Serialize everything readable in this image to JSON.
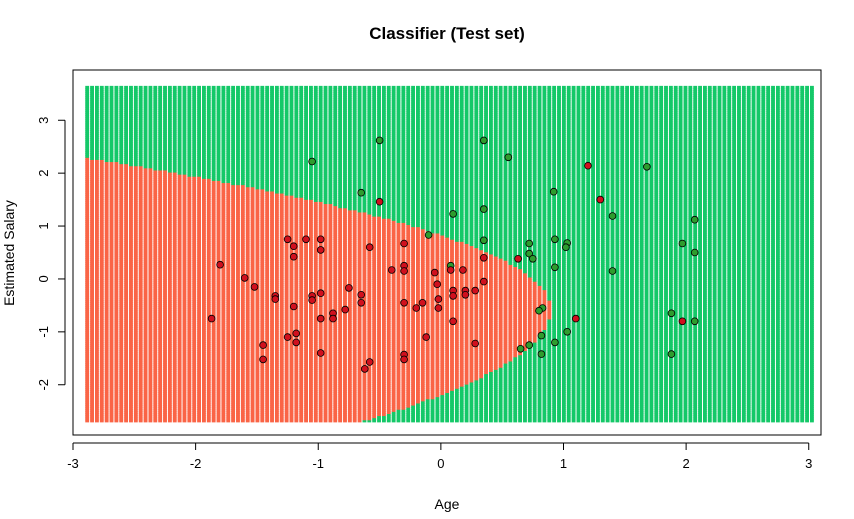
{
  "chart_data": {
    "type": "scatter",
    "title": "Classifier (Test set)",
    "xlabel": "Age",
    "ylabel": "Estimated Salary",
    "xlim": [
      -3.0,
      3.1
    ],
    "ylim": [
      -2.95,
      3.95
    ],
    "grid_range": {
      "x": [
        -2.9,
        3.05
      ],
      "y": [
        -2.7,
        3.65
      ]
    },
    "x_ticks": [
      -3,
      -2,
      -1,
      0,
      1,
      2,
      3
    ],
    "y_ticks": [
      -2,
      -1,
      0,
      1,
      2,
      3
    ],
    "colors": {
      "region_0": "#FA6446",
      "region_1": "#14C868",
      "point_0": "#D0101E",
      "point_1": "#2E9C2E",
      "point_edge": "#000000"
    },
    "decision_boundary": {
      "description_shape": "parabola-like",
      "vertex": [
        0.9,
        -0.55
      ],
      "top": [
        -2.9,
        2.3
      ],
      "bottom": [
        -0.65,
        -2.7
      ]
    },
    "points": [
      [
        -1.05,
        2.22,
        1
      ],
      [
        -0.5,
        2.62,
        1
      ],
      [
        0.35,
        2.62,
        1
      ],
      [
        0.55,
        2.3,
        1
      ],
      [
        1.2,
        2.14,
        0
      ],
      [
        1.68,
        2.12,
        1
      ],
      [
        -0.65,
        1.63,
        1
      ],
      [
        -0.5,
        1.46,
        0
      ],
      [
        0.92,
        1.65,
        1
      ],
      [
        1.3,
        1.5,
        0
      ],
      [
        0.1,
        1.23,
        1
      ],
      [
        0.35,
        1.32,
        1
      ],
      [
        1.4,
        1.19,
        1
      ],
      [
        2.07,
        1.12,
        1
      ],
      [
        -0.1,
        0.83,
        1
      ],
      [
        -1.1,
        0.75,
        0
      ],
      [
        -1.25,
        0.75,
        0
      ],
      [
        -1.2,
        0.62,
        0
      ],
      [
        -1.2,
        0.42,
        0
      ],
      [
        -0.98,
        0.55,
        0
      ],
      [
        -0.58,
        0.6,
        0
      ],
      [
        -0.3,
        0.67,
        0
      ],
      [
        0.35,
        0.73,
        1
      ],
      [
        0.72,
        0.67,
        1
      ],
      [
        0.93,
        0.75,
        1
      ],
      [
        1.03,
        0.68,
        1
      ],
      [
        1.02,
        0.6,
        1
      ],
      [
        1.97,
        0.67,
        1
      ],
      [
        2.07,
        0.5,
        1
      ],
      [
        0.72,
        0.48,
        1
      ],
      [
        0.63,
        0.38,
        0
      ],
      [
        0.75,
        0.38,
        1
      ],
      [
        0.35,
        0.4,
        0
      ],
      [
        -1.8,
        0.27,
        0
      ],
      [
        -1.6,
        0.02,
        0
      ],
      [
        -1.52,
        -0.15,
        0
      ],
      [
        -1.35,
        -0.32,
        0
      ],
      [
        -1.35,
        -0.38,
        0
      ],
      [
        -1.2,
        -0.52,
        0
      ],
      [
        -1.05,
        -0.32,
        0
      ],
      [
        -1.05,
        -0.4,
        0
      ],
      [
        -0.98,
        -0.27,
        0
      ],
      [
        -0.88,
        -0.65,
        0
      ],
      [
        -0.88,
        -0.75,
        0
      ],
      [
        -0.75,
        -0.17,
        0
      ],
      [
        -0.78,
        -0.58,
        0
      ],
      [
        -0.65,
        -0.3,
        0
      ],
      [
        -0.65,
        -0.45,
        0
      ],
      [
        -0.62,
        -1.7,
        0
      ],
      [
        -0.58,
        -1.57,
        0
      ],
      [
        -0.4,
        0.17,
        0
      ],
      [
        -0.3,
        0.25,
        0
      ],
      [
        -0.3,
        0.15,
        0
      ],
      [
        -0.3,
        -0.45,
        0
      ],
      [
        -0.2,
        -0.55,
        0
      ],
      [
        -0.15,
        -0.45,
        0
      ],
      [
        -0.12,
        -1.1,
        0
      ],
      [
        -0.05,
        0.12,
        0
      ],
      [
        -0.03,
        -0.1,
        0
      ],
      [
        -0.02,
        -0.38,
        0
      ],
      [
        -0.02,
        -0.55,
        0
      ],
      [
        0.08,
        0.25,
        1
      ],
      [
        0.08,
        0.17,
        0
      ],
      [
        0.1,
        -0.22,
        0
      ],
      [
        0.1,
        -0.32,
        0
      ],
      [
        0.1,
        -0.8,
        0
      ],
      [
        0.18,
        0.17,
        0
      ],
      [
        0.2,
        -0.22,
        0
      ],
      [
        0.2,
        -0.3,
        0
      ],
      [
        0.28,
        -0.22,
        0
      ],
      [
        0.35,
        -0.05,
        0
      ],
      [
        0.28,
        -1.22,
        0
      ],
      [
        0.83,
        -0.55,
        1
      ],
      [
        0.8,
        -0.6,
        1
      ],
      [
        0.82,
        -1.07,
        1
      ],
      [
        0.72,
        -1.25,
        1
      ],
      [
        0.65,
        -1.32,
        1
      ],
      [
        0.82,
        -1.42,
        1
      ],
      [
        0.93,
        -1.2,
        1
      ],
      [
        0.93,
        0.22,
        1
      ],
      [
        1.1,
        -0.75,
        0
      ],
      [
        1.03,
        -1.0,
        1
      ],
      [
        1.4,
        0.15,
        1
      ],
      [
        1.88,
        -0.65,
        1
      ],
      [
        1.88,
        -1.42,
        1
      ],
      [
        1.97,
        -0.8,
        0
      ],
      [
        2.07,
        -0.8,
        1
      ],
      [
        -1.87,
        -0.75,
        0
      ],
      [
        -1.45,
        -1.25,
        0
      ],
      [
        -1.45,
        -1.52,
        0
      ],
      [
        -1.25,
        -1.1,
        0
      ],
      [
        -1.18,
        -1.03,
        0
      ],
      [
        -1.18,
        -1.2,
        0
      ],
      [
        -0.98,
        -0.75,
        0
      ],
      [
        -0.3,
        -1.43,
        0
      ],
      [
        -0.3,
        -1.52,
        0
      ],
      [
        -0.98,
        0.75,
        0
      ],
      [
        -0.98,
        -1.4,
        0
      ]
    ]
  }
}
